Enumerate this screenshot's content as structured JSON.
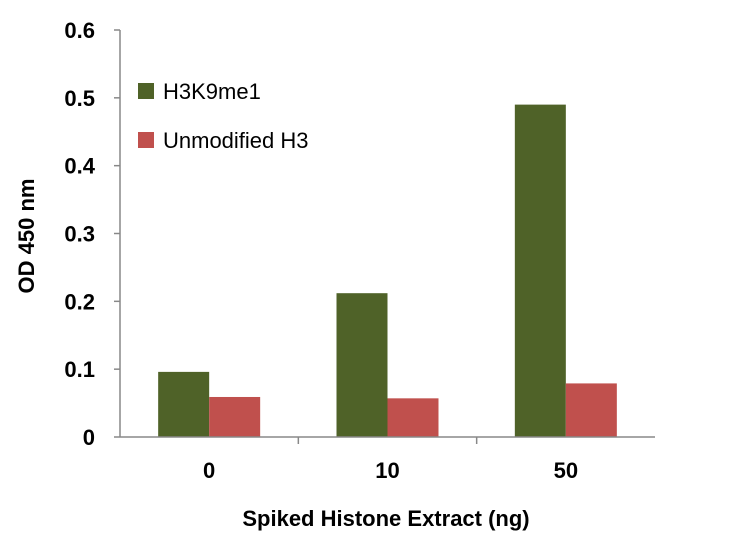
{
  "chart_data": {
    "type": "bar",
    "categories": [
      "0",
      "10",
      "50"
    ],
    "series": [
      {
        "name": "H3K9me1",
        "values": [
          0.096,
          0.212,
          0.49
        ],
        "color": "#4f6228"
      },
      {
        "name": "Unmodified H3",
        "values": [
          0.059,
          0.057,
          0.079
        ],
        "color": "#c0504d"
      }
    ],
    "xlabel": "Spiked Histone Extract (ng)",
    "ylabel": "OD 450 nm",
    "ylim": [
      0,
      0.6
    ],
    "yticks": [
      "0",
      "0.1",
      "0.2",
      "0.3",
      "0.4",
      "0.5",
      "0.6"
    ],
    "grid": false,
    "legend_position": "top-left"
  }
}
